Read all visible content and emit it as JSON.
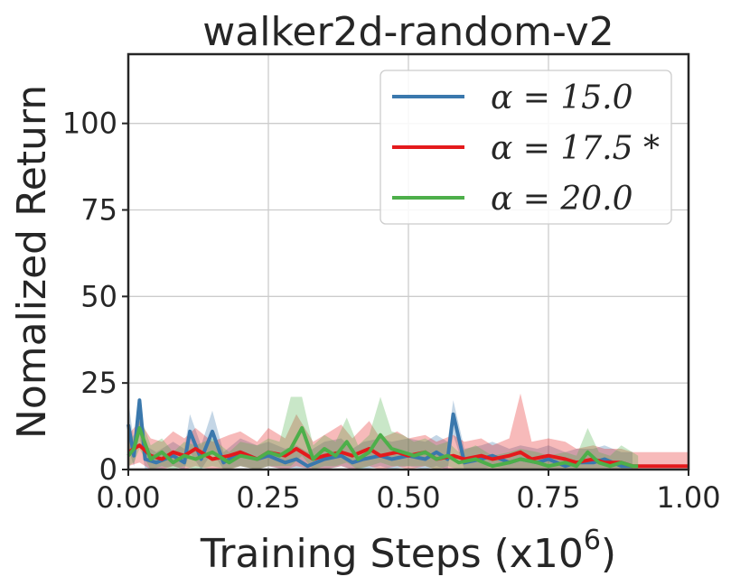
{
  "chart_data": {
    "type": "line",
    "title": "walker2d-random-v2",
    "xlabel": "Training Steps (x10",
    "xlabel_sup": "6",
    "xlabel_close": ")",
    "ylabel": "Nomalized Return",
    "xlim": [
      0.0,
      1.0
    ],
    "ylim": [
      0,
      120
    ],
    "xticks": [
      0.0,
      0.25,
      0.5,
      0.75,
      1.0
    ],
    "xtick_labels": [
      "0.00",
      "0.25",
      "0.50",
      "0.75",
      "1.00"
    ],
    "yticks": [
      0,
      25,
      50,
      75,
      100
    ],
    "ytick_labels": [
      "0",
      "25",
      "50",
      "75",
      "100"
    ],
    "grid": true,
    "legend_position": "top-right",
    "series": [
      {
        "name": "α = 15.0",
        "color": "#3a78ad",
        "x": [
          0.0,
          0.01,
          0.02,
          0.03,
          0.05,
          0.08,
          0.1,
          0.11,
          0.13,
          0.15,
          0.17,
          0.2,
          0.23,
          0.25,
          0.28,
          0.3,
          0.32,
          0.35,
          0.38,
          0.4,
          0.42,
          0.45,
          0.47,
          0.5,
          0.53,
          0.55,
          0.57,
          0.58,
          0.6,
          0.63,
          0.65,
          0.68,
          0.7,
          0.73,
          0.75,
          0.78,
          0.8,
          0.83,
          0.85,
          0.88,
          0.9
        ],
        "y": [
          13,
          4,
          20,
          3,
          2,
          4,
          2,
          11,
          3,
          11,
          2,
          5,
          3,
          4,
          2,
          3,
          1,
          3,
          4,
          2,
          3,
          4,
          3,
          4,
          3,
          5,
          3,
          16,
          2,
          3,
          4,
          2,
          3,
          2,
          3,
          1,
          2,
          2,
          3,
          1,
          1
        ],
        "upper": [
          20,
          8,
          21,
          7,
          5,
          8,
          6,
          16,
          7,
          17,
          5,
          9,
          7,
          8,
          6,
          7,
          5,
          8,
          9,
          6,
          8,
          9,
          8,
          9,
          8,
          10,
          8,
          20,
          6,
          7,
          8,
          6,
          7,
          6,
          7,
          5,
          6,
          6,
          7,
          5,
          5
        ],
        "lower": [
          6,
          1,
          10,
          0,
          0,
          1,
          0,
          5,
          0,
          5,
          0,
          1,
          0,
          1,
          0,
          0,
          0,
          0,
          1,
          0,
          0,
          1,
          0,
          1,
          0,
          1,
          0,
          10,
          0,
          0,
          1,
          0,
          0,
          0,
          0,
          0,
          0,
          0,
          0,
          0,
          0
        ]
      },
      {
        "name": "α = 17.5 *",
        "color": "#e41a1c",
        "x": [
          0.0,
          0.02,
          0.04,
          0.06,
          0.08,
          0.1,
          0.12,
          0.15,
          0.18,
          0.2,
          0.23,
          0.25,
          0.28,
          0.3,
          0.33,
          0.35,
          0.38,
          0.4,
          0.43,
          0.45,
          0.48,
          0.5,
          0.53,
          0.55,
          0.58,
          0.6,
          0.63,
          0.65,
          0.68,
          0.7,
          0.72,
          0.75,
          0.78,
          0.8,
          0.83,
          0.85,
          0.88,
          0.9,
          0.93,
          0.95,
          0.98,
          1.0
        ],
        "y": [
          5,
          7,
          4,
          3,
          5,
          4,
          6,
          3,
          4,
          5,
          3,
          5,
          4,
          6,
          3,
          4,
          5,
          4,
          6,
          4,
          5,
          4,
          5,
          3,
          4,
          3,
          4,
          3,
          4,
          5,
          3,
          4,
          3,
          2,
          3,
          2,
          2,
          1,
          1,
          1,
          1,
          1
        ],
        "upper": [
          10,
          14,
          9,
          8,
          11,
          9,
          12,
          8,
          10,
          11,
          8,
          12,
          9,
          16,
          8,
          10,
          13,
          9,
          14,
          9,
          11,
          9,
          10,
          8,
          10,
          8,
          9,
          7,
          9,
          22,
          8,
          9,
          8,
          6,
          7,
          6,
          6,
          5,
          5,
          5,
          5,
          5
        ],
        "lower": [
          1,
          2,
          0,
          0,
          1,
          0,
          1,
          0,
          0,
          1,
          0,
          1,
          0,
          1,
          0,
          0,
          1,
          0,
          1,
          0,
          1,
          0,
          1,
          0,
          0,
          0,
          0,
          0,
          0,
          0,
          0,
          0,
          0,
          0,
          0,
          0,
          0,
          0,
          0,
          0,
          0,
          0
        ]
      },
      {
        "name": "α = 20.0",
        "color": "#4daf4a",
        "x": [
          0.0,
          0.01,
          0.02,
          0.04,
          0.06,
          0.08,
          0.1,
          0.12,
          0.15,
          0.18,
          0.2,
          0.23,
          0.25,
          0.27,
          0.29,
          0.31,
          0.33,
          0.35,
          0.37,
          0.39,
          0.41,
          0.43,
          0.45,
          0.47,
          0.49,
          0.51,
          0.53,
          0.55,
          0.57,
          0.59,
          0.62,
          0.65,
          0.68,
          0.7,
          0.73,
          0.75,
          0.78,
          0.8,
          0.82,
          0.84,
          0.86,
          0.88,
          0.9,
          0.91
        ],
        "y": [
          4,
          6,
          12,
          3,
          5,
          2,
          4,
          3,
          5,
          2,
          4,
          3,
          5,
          4,
          6,
          12,
          3,
          6,
          4,
          8,
          3,
          5,
          10,
          6,
          5,
          4,
          5,
          3,
          4,
          2,
          3,
          1,
          2,
          3,
          2,
          1,
          2,
          1,
          5,
          2,
          1,
          2,
          1,
          1
        ],
        "upper": [
          8,
          10,
          16,
          7,
          9,
          5,
          8,
          7,
          9,
          5,
          8,
          7,
          9,
          8,
          21,
          21,
          7,
          10,
          8,
          15,
          7,
          10,
          21,
          11,
          10,
          8,
          9,
          7,
          8,
          5,
          7,
          4,
          5,
          6,
          5,
          4,
          5,
          4,
          12,
          5,
          4,
          7,
          5,
          4
        ],
        "lower": [
          1,
          2,
          6,
          0,
          1,
          0,
          1,
          0,
          1,
          0,
          1,
          0,
          1,
          1,
          1,
          4,
          0,
          1,
          1,
          2,
          0,
          1,
          2,
          1,
          1,
          1,
          1,
          0,
          1,
          0,
          0,
          0,
          0,
          0,
          0,
          0,
          0,
          0,
          0,
          0,
          0,
          0,
          0,
          0
        ]
      }
    ]
  }
}
